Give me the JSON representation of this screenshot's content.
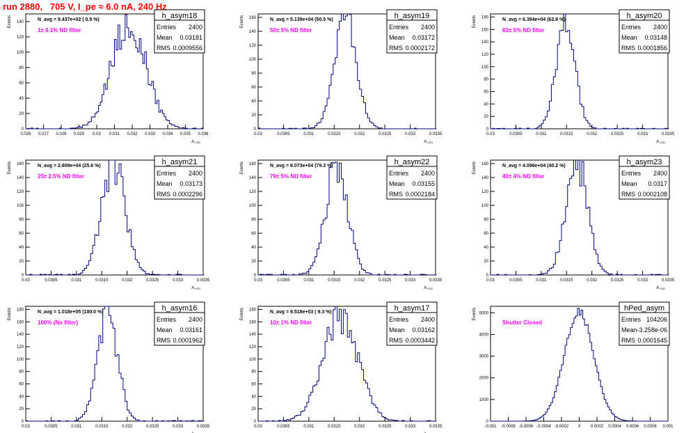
{
  "header": {
    "run_title": "run 2880,   705 V, I_pe ≈ 6.0 nA, 240 Hz"
  },
  "colors": {
    "histogram_line": "#000080",
    "filter_label": "#ff00ff",
    "title": "#ff0000"
  },
  "chart_data": [
    {
      "type": "histogram",
      "name": "h_asym18",
      "stats": {
        "Entries": "2400",
        "Mean": "0.03181",
        "RMS": "0.0009556"
      },
      "n_avg_label": "N_avg = 9.437e+02 ( 0.9 %)",
      "filter_label": "1± 0.1% ND filter",
      "xlabel": "A_LED",
      "ylabel": "Events",
      "xlim": [
        0.026,
        0.036
      ],
      "ylim": [
        0,
        150
      ],
      "x_ticks": [
        "0.026",
        "0.027",
        "0.028",
        "0.029",
        "0.03",
        "0.031",
        "0.032",
        "0.033",
        "0.034",
        "0.035",
        "0.036"
      ],
      "y_ticks": [
        "0",
        "20",
        "40",
        "60",
        "80",
        "100",
        "120",
        "140"
      ],
      "mean": 0.03181,
      "rms": 0.0009556,
      "peak": 140,
      "bin_width": 0.0001
    },
    {
      "type": "histogram",
      "name": "h_asym19",
      "stats": {
        "Entries": "2400",
        "Mean": "0.03172",
        "RMS": "0.0002172"
      },
      "n_avg_label": "N_avg = 5.139e+04 (50.5 %)",
      "filter_label": "50± 5% ND filter",
      "xlabel": "A_LED",
      "ylabel": "Events",
      "xlim": [
        0.03,
        0.0335
      ],
      "ylim": [
        0,
        165
      ],
      "x_ticks": [
        "0.03",
        "0.0305",
        "0.031",
        "0.0315",
        "0.032",
        "0.0325",
        "0.033",
        "0.0335"
      ],
      "y_ticks": [
        "0",
        "20",
        "40",
        "60",
        "80",
        "100",
        "120",
        "140",
        "160"
      ],
      "mean": 0.03172,
      "rms": 0.0002172,
      "peak": 157,
      "bin_width": 4e-05
    },
    {
      "type": "histogram",
      "name": "h_asym20",
      "stats": {
        "Entries": "2400",
        "Mean": "0.03148",
        "RMS": "0.0001856"
      },
      "n_avg_label": "N_avg = 6.394e+04 (62.8 %)",
      "filter_label": "63± 5% ND filter",
      "xlabel": "A_LED",
      "ylabel": "Events",
      "xlim": [
        0.03,
        0.0335
      ],
      "ylim": [
        0,
        185
      ],
      "x_ticks": [
        "0.03",
        "0.0305",
        "0.031",
        "0.0315",
        "0.032",
        "0.0325",
        "0.033",
        "0.0335"
      ],
      "y_ticks": [
        "0",
        "20",
        "40",
        "60",
        "80",
        "100",
        "120",
        "140",
        "160",
        "180"
      ],
      "mean": 0.03148,
      "rms": 0.0001856,
      "peak": 175,
      "bin_width": 4e-05
    },
    {
      "type": "histogram",
      "name": "h_asym21",
      "stats": {
        "Entries": "2400",
        "Mean": "0.03173",
        "RMS": "0.0002296"
      },
      "n_avg_label": "N_avg = 2.609e+04 (25.6 %)",
      "filter_label": "25± 2.5% ND filter",
      "xlabel": "A_LED",
      "ylabel": "Events",
      "xlim": [
        0.03,
        0.0335
      ],
      "ylim": [
        0,
        165
      ],
      "x_ticks": [
        "0.03",
        "0.0305",
        "0.031",
        "0.0315",
        "0.032",
        "0.0325",
        "0.033",
        "0.0335"
      ],
      "y_ticks": [
        "0",
        "20",
        "40",
        "60",
        "80",
        "100",
        "120",
        "140",
        "160"
      ],
      "mean": 0.03173,
      "rms": 0.0002296,
      "peak": 160,
      "bin_width": 4e-05
    },
    {
      "type": "histogram",
      "name": "h_asym22",
      "stats": {
        "Entries": "2400",
        "Mean": "0.03155",
        "RMS": "0.0002184"
      },
      "n_avg_label": "N_avg = 8.073e+04 (79.3 %)",
      "filter_label": "79± 5% ND filter",
      "xlabel": "A_LED",
      "ylabel": "Events",
      "xlim": [
        0.03,
        0.0335
      ],
      "ylim": [
        0,
        165
      ],
      "x_ticks": [
        "0.03",
        "0.0305",
        "0.031",
        "0.0315",
        "0.032",
        "0.0325",
        "0.033",
        "0.0335"
      ],
      "y_ticks": [
        "0",
        "20",
        "40",
        "60",
        "80",
        "100",
        "120",
        "140",
        "160"
      ],
      "mean": 0.03155,
      "rms": 0.0002184,
      "peak": 158,
      "bin_width": 4e-05
    },
    {
      "type": "histogram",
      "name": "h_asym23",
      "stats": {
        "Entries": "2400",
        "Mean": "0.0317",
        "RMS": "0.0002108"
      },
      "n_avg_label": "N_avg = 4.096e+04 (40.2 %)",
      "filter_label": "40± 4% ND filter",
      "xlabel": "A_LED",
      "ylabel": "Events",
      "xlim": [
        0.03,
        0.0335
      ],
      "ylim": [
        0,
        165
      ],
      "x_ticks": [
        "0.03",
        "0.0305",
        "0.031",
        "0.0315",
        "0.032",
        "0.0325",
        "0.033",
        "0.0335"
      ],
      "y_ticks": [
        "0",
        "20",
        "40",
        "60",
        "80",
        "100",
        "120",
        "140",
        "160"
      ],
      "mean": 0.0317,
      "rms": 0.0002108,
      "peak": 162,
      "bin_width": 4e-05
    },
    {
      "type": "histogram",
      "name": "h_asym16",
      "stats": {
        "Entries": "2400",
        "Mean": "0.03161",
        "RMS": "0.0001962"
      },
      "n_avg_label": "N_avg = 1.018e+05 (100.0 %)",
      "filter_label": "100% (No filter)",
      "xlabel": "A_LED",
      "ylabel": "Events",
      "xlim": [
        0.03,
        0.0335
      ],
      "ylim": [
        0,
        185
      ],
      "x_ticks": [
        "0.03",
        "0.0305",
        "0.031",
        "0.0315",
        "0.032",
        "0.0325",
        "0.033",
        "0.0335"
      ],
      "y_ticks": [
        "0",
        "20",
        "40",
        "60",
        "80",
        "100",
        "120",
        "140",
        "160",
        "180"
      ],
      "mean": 0.03161,
      "rms": 0.0001962,
      "peak": 175,
      "bin_width": 4e-05
    },
    {
      "type": "histogram",
      "name": "h_asym17",
      "stats": {
        "Entries": "2400",
        "Mean": "0.03162",
        "RMS": "0.0003442"
      },
      "n_avg_label": "N_avg = 9.518e+03 ( 9.3 %)",
      "filter_label": "10± 1% ND filter",
      "xlabel": "A_LED",
      "ylabel": "Events",
      "xlim": [
        0.03,
        0.0335
      ],
      "ylim": [
        0,
        185
      ],
      "x_ticks": [
        "0.03",
        "0.0305",
        "0.031",
        "0.0315",
        "0.032",
        "0.0325",
        "0.033",
        "0.0335"
      ],
      "y_ticks": [
        "0",
        "20",
        "40",
        "60",
        "80",
        "100",
        "120",
        "140",
        "160",
        "180"
      ],
      "mean": 0.03162,
      "rms": 0.0003442,
      "peak": 172,
      "bin_width": 4e-05
    },
    {
      "type": "histogram",
      "name": "hPed_asym",
      "stats": {
        "Entries": "104206",
        "Mean": "-3.258e-06",
        "RMS": "0.0001645"
      },
      "n_avg_label": "",
      "filter_label": "Shutter Closed",
      "xlabel": "",
      "ylabel": "Events",
      "xlim": [
        -0.001,
        0.001
      ],
      "ylim": [
        0,
        5300
      ],
      "x_ticks": [
        "-0.001",
        "-0.0008",
        "-0.0006",
        "-0.0004",
        "-0.0002",
        "0",
        "0.0002",
        "0.0004",
        "0.0006",
        "0.0008",
        "0.001"
      ],
      "y_ticks": [
        "0",
        "1000",
        "2000",
        "3000",
        "4000",
        "5000"
      ],
      "mean": -3.258e-06,
      "rms": 0.0001645,
      "peak": 5050,
      "bin_width": 2e-05
    }
  ]
}
